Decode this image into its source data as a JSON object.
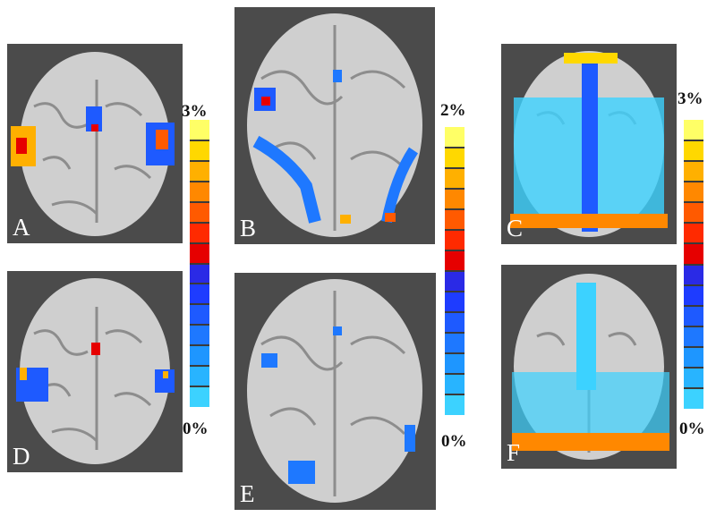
{
  "panels": [
    {
      "id": "A",
      "label": "A"
    },
    {
      "id": "B",
      "label": "B"
    },
    {
      "id": "C",
      "label": "C"
    },
    {
      "id": "D",
      "label": "D"
    },
    {
      "id": "E",
      "label": "E"
    },
    {
      "id": "F",
      "label": "F"
    }
  ],
  "colorbars": [
    {
      "id": "left",
      "max_label": "3%",
      "min_label": "0%"
    },
    {
      "id": "middle",
      "max_label": "2%",
      "min_label": "0%"
    },
    {
      "id": "right",
      "max_label": "3%",
      "min_label": "0%"
    }
  ],
  "colors": {
    "background": "#4b4b4b",
    "brain_gray": "#c9c9c9",
    "scale": [
      "#ffff66",
      "#ffd800",
      "#ffb000",
      "#ff8800",
      "#ff5a00",
      "#ff2a00",
      "#e60000",
      "#2a2ae6",
      "#1e3cff",
      "#1e5aff",
      "#1e78ff",
      "#1e96ff",
      "#28b4ff",
      "#3cd2ff"
    ]
  }
}
